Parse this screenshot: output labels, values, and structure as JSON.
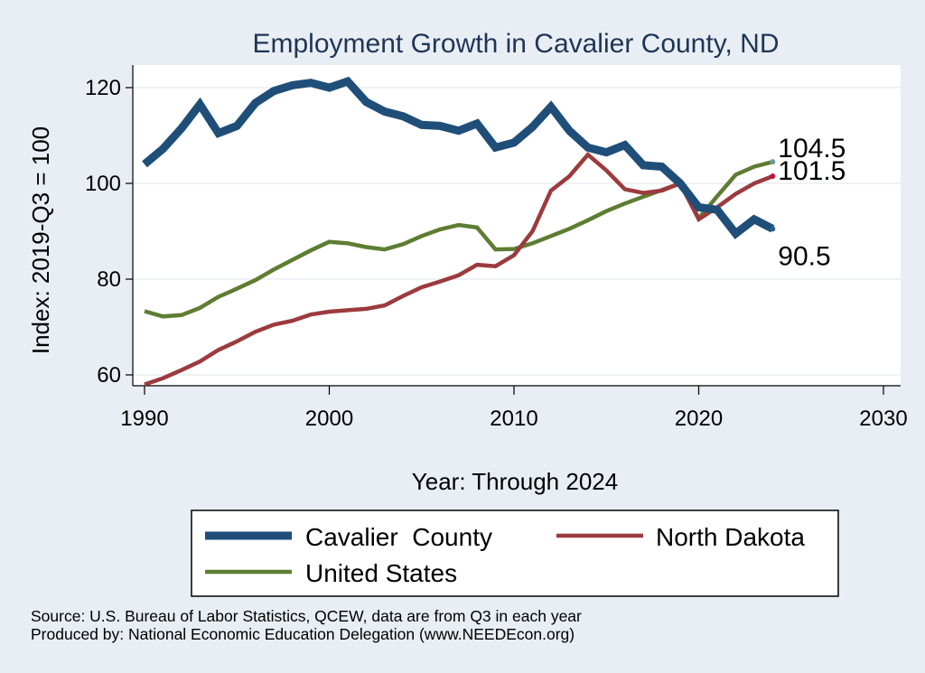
{
  "chart_data": {
    "type": "line",
    "title": "Employment Growth in Cavalier County, ND",
    "xlabel": "Year: Through 2024",
    "ylabel": "Index: 2019-Q3 = 100",
    "xlim": [
      1990,
      2030
    ],
    "ylim": [
      58,
      124
    ],
    "xticks": [
      1990,
      2000,
      2010,
      2020,
      2030
    ],
    "yticks": [
      60,
      80,
      100,
      120
    ],
    "grid": true,
    "legend_position": "bottom",
    "series": [
      {
        "name": "Cavalier  County",
        "color": "#1f4e79",
        "end_label": "90.5",
        "x": [
          1990,
          1991,
          1992,
          1993,
          1994,
          1995,
          1996,
          1997,
          1998,
          1999,
          2000,
          2001,
          2002,
          2003,
          2004,
          2005,
          2006,
          2007,
          2008,
          2009,
          2010,
          2011,
          2012,
          2013,
          2014,
          2015,
          2016,
          2017,
          2018,
          2019,
          2020,
          2021,
          2022,
          2023,
          2024
        ],
        "values": [
          104,
          107.2,
          111.5,
          116.5,
          110.5,
          112,
          116.8,
          119.3,
          120.5,
          121,
          120,
          121.3,
          117,
          115,
          114,
          112.2,
          112,
          111,
          112.5,
          107.5,
          108.5,
          111.8,
          116,
          111,
          107.5,
          106.5,
          108,
          103.8,
          103.5,
          100,
          95,
          94.5,
          89.5,
          92.5,
          90.5
        ]
      },
      {
        "name": "North Dakota",
        "color": "#9c3a3d",
        "end_label": "101.5",
        "x": [
          1990,
          1991,
          1992,
          1993,
          1994,
          1995,
          1996,
          1997,
          1998,
          1999,
          2000,
          2001,
          2002,
          2003,
          2004,
          2005,
          2006,
          2007,
          2008,
          2009,
          2010,
          2011,
          2012,
          2013,
          2014,
          2015,
          2016,
          2017,
          2018,
          2019,
          2020,
          2021,
          2022,
          2023,
          2024
        ],
        "values": [
          58,
          59.3,
          61,
          62.8,
          65.2,
          67,
          69,
          70.5,
          71.3,
          72.6,
          73.2,
          73.5,
          73.8,
          74.5,
          76.5,
          78.3,
          79.5,
          80.8,
          83,
          82.7,
          85,
          90,
          98.5,
          101.5,
          106,
          102.7,
          98.8,
          98,
          98.5,
          100,
          92.5,
          95,
          97.8,
          100,
          101.5
        ]
      },
      {
        "name": "United States",
        "color": "#5e7d32",
        "end_label": "104.5",
        "x": [
          1990,
          1991,
          1992,
          1993,
          1994,
          1995,
          1996,
          1997,
          1998,
          1999,
          2000,
          2001,
          2002,
          2003,
          2004,
          2005,
          2006,
          2007,
          2008,
          2009,
          2010,
          2011,
          2012,
          2013,
          2014,
          2015,
          2016,
          2017,
          2018,
          2019,
          2020,
          2021,
          2022,
          2023,
          2024
        ],
        "values": [
          73.3,
          72.2,
          72.5,
          74,
          76.3,
          78,
          79.8,
          82,
          84,
          86,
          87.8,
          87.5,
          86.7,
          86.2,
          87.3,
          89,
          90.4,
          91.3,
          90.8,
          86.2,
          86.3,
          87.5,
          89,
          90.5,
          92.3,
          94.2,
          95.8,
          97.2,
          98.6,
          100,
          92.7,
          97.3,
          101.8,
          103.5,
          104.5
        ]
      }
    ]
  },
  "notes": {
    "source": "Source: U.S. Bureau of Labor Statistics, QCEW, data are from Q3 in each year",
    "produced_by": "Produced by: National Economic Education Delegation (www.NEEDEcon.org)"
  }
}
